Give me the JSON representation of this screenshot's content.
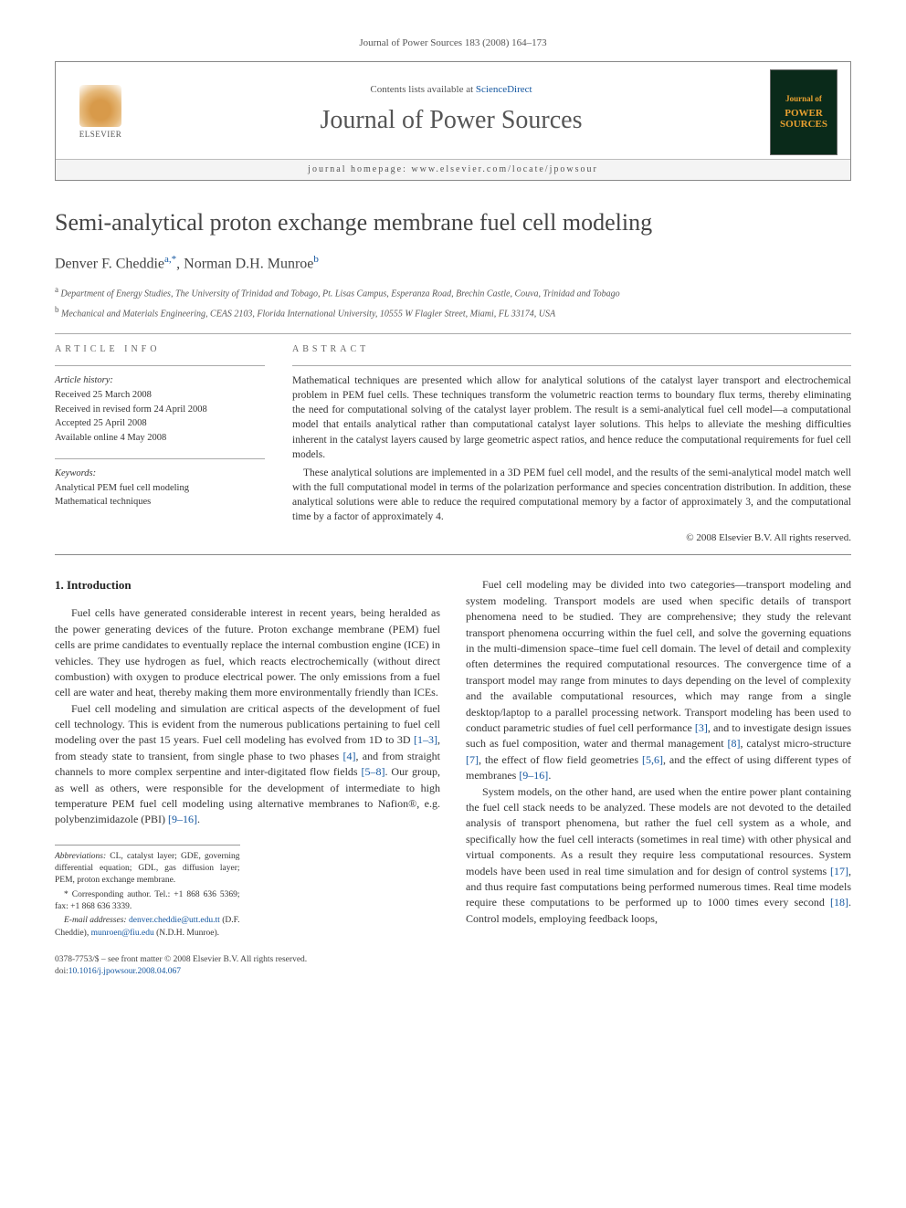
{
  "running_header": "Journal of Power Sources 183 (2008) 164–173",
  "header": {
    "contents_prefix": "Contents lists available at ",
    "contents_link": "ScienceDirect",
    "journal_name": "Journal of Power Sources",
    "homepage_prefix": "journal homepage: ",
    "homepage_url": "www.elsevier.com/locate/jpowsour",
    "publisher_label": "ELSEVIER",
    "cover_journal_line": "Journal of",
    "cover_title": "POWER SOURCES"
  },
  "article": {
    "title": "Semi-analytical proton exchange membrane fuel cell modeling",
    "authors_html": "Denver F. Cheddie",
    "author1_sup": "a,*",
    "author2": ", Norman D.H. Munroe",
    "author2_sup": "b",
    "affiliations": [
      {
        "sup": "a",
        "text": "Department of Energy Studies, The University of Trinidad and Tobago, Pt. Lisas Campus, Esperanza Road, Brechin Castle, Couva, Trinidad and Tobago"
      },
      {
        "sup": "b",
        "text": "Mechanical and Materials Engineering, CEAS 2103, Florida International University, 10555 W Flagler Street, Miami, FL 33174, USA"
      }
    ]
  },
  "info": {
    "section_label": "ARTICLE INFO",
    "history_label": "Article history:",
    "history": [
      "Received 25 March 2008",
      "Received in revised form 24 April 2008",
      "Accepted 25 April 2008",
      "Available online 4 May 2008"
    ],
    "keywords_label": "Keywords:",
    "keywords": [
      "Analytical PEM fuel cell modeling",
      "Mathematical techniques"
    ]
  },
  "abstract": {
    "section_label": "ABSTRACT",
    "paragraphs": [
      "Mathematical techniques are presented which allow for analytical solutions of the catalyst layer transport and electrochemical problem in PEM fuel cells. These techniques transform the volumetric reaction terms to boundary flux terms, thereby eliminating the need for computational solving of the catalyst layer problem. The result is a semi-analytical fuel cell model—a computational model that entails analytical rather than computational catalyst layer solutions. This helps to alleviate the meshing difficulties inherent in the catalyst layers caused by large geometric aspect ratios, and hence reduce the computational requirements for fuel cell models.",
      "These analytical solutions are implemented in a 3D PEM fuel cell model, and the results of the semi-analytical model match well with the full computational model in terms of the polarization performance and species concentration distribution. In addition, these analytical solutions were able to reduce the required computational memory by a factor of approximately 3, and the computational time by a factor of approximately 4."
    ],
    "copyright": "© 2008 Elsevier B.V. All rights reserved."
  },
  "body": {
    "intro_heading": "1. Introduction",
    "left_paragraphs": [
      "Fuel cells have generated considerable interest in recent years, being heralded as the power generating devices of the future. Proton exchange membrane (PEM) fuel cells are prime candidates to eventually replace the internal combustion engine (ICE) in vehicles. They use hydrogen as fuel, which reacts electrochemically (without direct combustion) with oxygen to produce electrical power. The only emissions from a fuel cell are water and heat, thereby making them more environmentally friendly than ICEs.",
      "Fuel cell modeling and simulation are critical aspects of the development of fuel cell technology. This is evident from the numerous publications pertaining to fuel cell modeling over the past 15 years. Fuel cell modeling has evolved from 1D to 3D [1–3], from steady state to transient, from single phase to two phases [4], and from straight channels to more complex serpentine and inter-digitated flow fields [5–8]. Our group, as well as others, were responsible for the development of intermediate to high temperature PEM fuel cell modeling using alternative membranes to Nafion®, e.g. polybenzimidazole (PBI) [9–16]."
    ],
    "right_paragraphs": [
      "Fuel cell modeling may be divided into two categories—transport modeling and system modeling. Transport models are used when specific details of transport phenomena need to be studied. They are comprehensive; they study the relevant transport phenomena occurring within the fuel cell, and solve the governing equations in the multi-dimension space–time fuel cell domain. The level of detail and complexity often determines the required computational resources. The convergence time of a transport model may range from minutes to days depending on the level of complexity and the available computational resources, which may range from a single desktop/laptop to a parallel processing network. Transport modeling has been used to conduct parametric studies of fuel cell performance [3], and to investigate design issues such as fuel composition, water and thermal management [8], catalyst micro-structure [7], the effect of flow field geometries [5,6], and the effect of using different types of membranes [9–16].",
      "System models, on the other hand, are used when the entire power plant containing the fuel cell stack needs to be analyzed. These models are not devoted to the detailed analysis of transport phenomena, but rather the fuel cell system as a whole, and specifically how the fuel cell interacts (sometimes in real time) with other physical and virtual components. As a result they require less computational resources. System models have been used in real time simulation and for design of control systems [17], and thus require fast computations being performed numerous times. Real time models require these computations to be performed up to 1000 times every second [18]. Control models, employing feedback loops,"
    ],
    "refs": {
      "r1": "[1–3]",
      "r4": "[4]",
      "r5": "[5–8]",
      "r9": "[9–16]",
      "r3": "[3]",
      "r8": "[8]",
      "r7": "[7]",
      "r56": "[5,6]",
      "r916b": "[9–16]",
      "r17": "[17]",
      "r18": "[18]"
    }
  },
  "footnotes": {
    "abbrev_label": "Abbreviations:",
    "abbrev_text": " CL, catalyst layer; GDE, governing differential equation; GDL, gas diffusion layer; PEM, proton exchange membrane.",
    "corr_label": "* Corresponding author.",
    "corr_text": " Tel.: +1 868 636 5369; fax: +1 868 636 3339.",
    "email_label": "E-mail addresses:",
    "email1": "denver.cheddie@utt.edu.tt",
    "email1_who": " (D.F. Cheddie), ",
    "email2": "munroen@fiu.edu",
    "email2_who": " (N.D.H. Munroe)."
  },
  "bottom": {
    "line1": "0378-7753/$ – see front matter © 2008 Elsevier B.V. All rights reserved.",
    "doi_prefix": "doi:",
    "doi": "10.1016/j.jpowsour.2008.04.067"
  },
  "colors": {
    "link": "#1557a0",
    "text": "#333333",
    "rule": "#aaaaaa"
  }
}
